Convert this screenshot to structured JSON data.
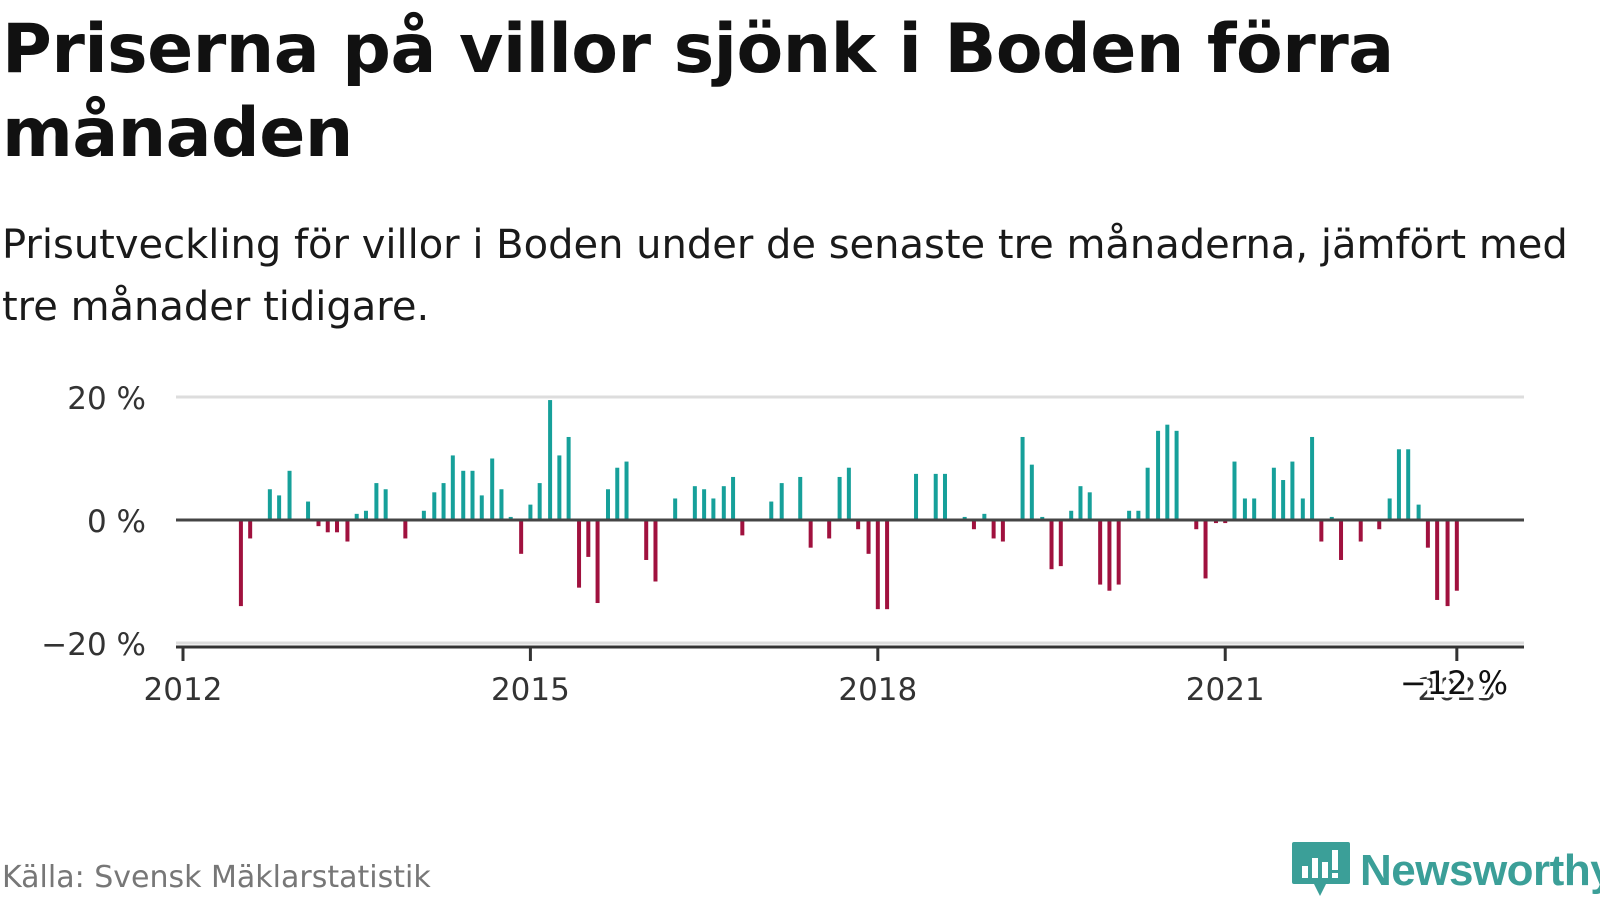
{
  "header": {
    "title": "Priserna på villor sjönk i Boden förra månaden",
    "subtitle": "Prisutveckling för villor i Boden under de senaste tre månaderna, jämfört med tre månader tidigare."
  },
  "footer": {
    "source": "Källa: Svensk Mäklarstatistik",
    "brand": "Newsworthy"
  },
  "colors": {
    "positive": "#16a09a",
    "negative": "#a0113e",
    "brand": "#3b9f98",
    "grid": "#dddddd",
    "axis": "#333333",
    "baseline": "#444444"
  },
  "chart_data": {
    "type": "bar",
    "title": "Prisutveckling för villor i Boden (%)",
    "xlabel": "",
    "ylabel": "",
    "ylim": [
      -20,
      20
    ],
    "grid": true,
    "y_ticks": [
      {
        "value": 20,
        "label": "20 %"
      },
      {
        "value": 0,
        "label": "0 %"
      },
      {
        "value": -20,
        "label": "−20 %"
      }
    ],
    "x_ticks": [
      {
        "value": 2012,
        "label": "2012"
      },
      {
        "value": 2015,
        "label": "2015"
      },
      {
        "value": 2018,
        "label": "2018"
      },
      {
        "value": 2021,
        "label": "2021"
      },
      {
        "value": 2023,
        "label": "2023"
      }
    ],
    "x_range": [
      2012.0,
      2023.58
    ],
    "annotation": {
      "value": -12,
      "label": "−12 %",
      "x": 2022.9
    },
    "points": [
      {
        "x": 2012.5,
        "v": -14
      },
      {
        "x": 2012.58,
        "v": -3
      },
      {
        "x": 2012.75,
        "v": 5
      },
      {
        "x": 2012.83,
        "v": 4
      },
      {
        "x": 2012.92,
        "v": 8
      },
      {
        "x": 2013.08,
        "v": 3
      },
      {
        "x": 2013.17,
        "v": -1
      },
      {
        "x": 2013.25,
        "v": -2
      },
      {
        "x": 2013.33,
        "v": -2
      },
      {
        "x": 2013.42,
        "v": -3.5
      },
      {
        "x": 2013.5,
        "v": 1
      },
      {
        "x": 2013.58,
        "v": 1.5
      },
      {
        "x": 2013.67,
        "v": 6
      },
      {
        "x": 2013.75,
        "v": 5
      },
      {
        "x": 2013.92,
        "v": -3
      },
      {
        "x": 2014.08,
        "v": 1.5
      },
      {
        "x": 2014.17,
        "v": 4.5
      },
      {
        "x": 2014.25,
        "v": 6
      },
      {
        "x": 2014.33,
        "v": 10.5
      },
      {
        "x": 2014.42,
        "v": 8
      },
      {
        "x": 2014.5,
        "v": 8
      },
      {
        "x": 2014.58,
        "v": 4
      },
      {
        "x": 2014.67,
        "v": 10
      },
      {
        "x": 2014.75,
        "v": 5
      },
      {
        "x": 2014.83,
        "v": 0.5
      },
      {
        "x": 2014.92,
        "v": -5.5
      },
      {
        "x": 2015.0,
        "v": 2.5
      },
      {
        "x": 2015.08,
        "v": 6
      },
      {
        "x": 2015.17,
        "v": 19.5
      },
      {
        "x": 2015.25,
        "v": 10.5
      },
      {
        "x": 2015.33,
        "v": 13.5
      },
      {
        "x": 2015.42,
        "v": -11
      },
      {
        "x": 2015.5,
        "v": -6
      },
      {
        "x": 2015.58,
        "v": -13.5
      },
      {
        "x": 2015.67,
        "v": 5
      },
      {
        "x": 2015.75,
        "v": 8.5
      },
      {
        "x": 2015.83,
        "v": 9.5
      },
      {
        "x": 2016.0,
        "v": -6.5
      },
      {
        "x": 2016.08,
        "v": -10
      },
      {
        "x": 2016.25,
        "v": 3.5
      },
      {
        "x": 2016.42,
        "v": 5.5
      },
      {
        "x": 2016.5,
        "v": 5
      },
      {
        "x": 2016.58,
        "v": 3.5
      },
      {
        "x": 2016.67,
        "v": 5.5
      },
      {
        "x": 2016.75,
        "v": 7
      },
      {
        "x": 2016.83,
        "v": -2.5
      },
      {
        "x": 2017.08,
        "v": 3
      },
      {
        "x": 2017.17,
        "v": 6
      },
      {
        "x": 2017.33,
        "v": 7
      },
      {
        "x": 2017.42,
        "v": -4.5
      },
      {
        "x": 2017.58,
        "v": -3
      },
      {
        "x": 2017.67,
        "v": 7
      },
      {
        "x": 2017.75,
        "v": 8.5
      },
      {
        "x": 2017.83,
        "v": -1.5
      },
      {
        "x": 2017.92,
        "v": -5.5
      },
      {
        "x": 2018.0,
        "v": -14.5
      },
      {
        "x": 2018.08,
        "v": -14.5
      },
      {
        "x": 2018.33,
        "v": 7.5
      },
      {
        "x": 2018.5,
        "v": 7.5
      },
      {
        "x": 2018.58,
        "v": 7.5
      },
      {
        "x": 2018.75,
        "v": 0.5
      },
      {
        "x": 2018.83,
        "v": -1.5
      },
      {
        "x": 2018.92,
        "v": 1
      },
      {
        "x": 2019.0,
        "v": -3
      },
      {
        "x": 2019.08,
        "v": -3.5
      },
      {
        "x": 2019.25,
        "v": 13.5
      },
      {
        "x": 2019.33,
        "v": 9
      },
      {
        "x": 2019.42,
        "v": 0.5
      },
      {
        "x": 2019.5,
        "v": -8
      },
      {
        "x": 2019.58,
        "v": -7.5
      },
      {
        "x": 2019.67,
        "v": 1.5
      },
      {
        "x": 2019.75,
        "v": 5.5
      },
      {
        "x": 2019.83,
        "v": 4.5
      },
      {
        "x": 2019.92,
        "v": -10.5
      },
      {
        "x": 2020.0,
        "v": -11.5
      },
      {
        "x": 2020.08,
        "v": -10.5
      },
      {
        "x": 2020.17,
        "v": 1.5
      },
      {
        "x": 2020.25,
        "v": 1.5
      },
      {
        "x": 2020.33,
        "v": 8.5
      },
      {
        "x": 2020.42,
        "v": 14.5
      },
      {
        "x": 2020.5,
        "v": 15.5
      },
      {
        "x": 2020.58,
        "v": 14.5
      },
      {
        "x": 2020.75,
        "v": -1.5
      },
      {
        "x": 2020.83,
        "v": -9.5
      },
      {
        "x": 2020.92,
        "v": -0.5
      },
      {
        "x": 2021.0,
        "v": -0.5
      },
      {
        "x": 2021.08,
        "v": 9.5
      },
      {
        "x": 2021.17,
        "v": 3.5
      },
      {
        "x": 2021.25,
        "v": 3.5
      },
      {
        "x": 2021.42,
        "v": 8.5
      },
      {
        "x": 2021.5,
        "v": 6.5
      },
      {
        "x": 2021.58,
        "v": 9.5
      },
      {
        "x": 2021.67,
        "v": 3.5
      },
      {
        "x": 2021.75,
        "v": 13.5
      },
      {
        "x": 2021.83,
        "v": -3.5
      },
      {
        "x": 2021.92,
        "v": 0.5
      },
      {
        "x": 2022.0,
        "v": -6.5
      },
      {
        "x": 2022.17,
        "v": -3.5
      },
      {
        "x": 2022.33,
        "v": -1.5
      },
      {
        "x": 2022.42,
        "v": 3.5
      },
      {
        "x": 2022.5,
        "v": 11.5
      },
      {
        "x": 2022.58,
        "v": 11.5
      },
      {
        "x": 2022.67,
        "v": 2.5
      },
      {
        "x": 2022.75,
        "v": -4.5
      },
      {
        "x": 2022.83,
        "v": -13
      },
      {
        "x": 2022.92,
        "v": -14
      },
      {
        "x": 2023.0,
        "v": -11.5
      }
    ]
  }
}
